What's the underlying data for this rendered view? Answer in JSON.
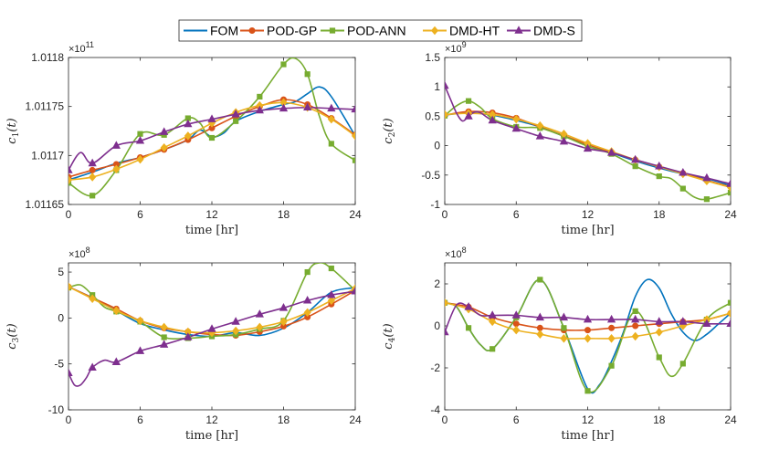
{
  "legend": [
    {
      "name": "FOM",
      "color": "#0072BD",
      "marker": "none"
    },
    {
      "name": "POD-GP",
      "color": "#D95319",
      "marker": "circle"
    },
    {
      "name": "POD-ANN",
      "color": "#77AC30",
      "marker": "square"
    },
    {
      "name": "DMD-HT",
      "color": "#EDB120",
      "marker": "diamond"
    },
    {
      "name": "DMD-S",
      "color": "#7E2F8E",
      "marker": "triangle"
    }
  ],
  "chart_data": [
    {
      "type": "line",
      "ylabel": "c_1(t)",
      "ylabel_main": "c",
      "ylabel_sub": "1",
      "ylabel_tail": "(t)",
      "xlabel": "time [hr]",
      "exponent_text": "×10",
      "exponent_power": "11",
      "xlim": [
        0,
        24
      ],
      "ylim": [
        1.01165,
        1.0118
      ],
      "xticks": [
        0,
        6,
        12,
        18,
        24
      ],
      "yticks": [
        1.01165,
        1.0117,
        1.01175,
        1.0118
      ],
      "ytick_labels": [
        "1.01165",
        "1.0117",
        "1.01175",
        "1.0118"
      ],
      "series": [
        {
          "name": "FOM",
          "x": [
            0,
            2,
            4,
            6,
            8,
            10,
            11,
            12,
            13,
            14,
            16,
            18,
            19,
            20,
            21,
            22,
            24
          ],
          "y": [
            1.011675,
            1.011683,
            1.011692,
            1.011698,
            1.011706,
            1.011716,
            1.011726,
            1.011719,
            1.011723,
            1.011735,
            1.011745,
            1.011752,
            1.011755,
            1.011763,
            1.01177,
            1.01176,
            1.01172
          ]
        },
        {
          "name": "POD-GP",
          "x": [
            0,
            2,
            4,
            6,
            8,
            10,
            12,
            14,
            16,
            18,
            20,
            22,
            24
          ],
          "y": [
            1.011678,
            1.011685,
            1.011691,
            1.011698,
            1.011706,
            1.011716,
            1.011728,
            1.01174,
            1.01175,
            1.011757,
            1.011752,
            1.011738,
            1.011721
          ]
        },
        {
          "name": "POD-ANN",
          "x": [
            0,
            2,
            4,
            6,
            8,
            10,
            11,
            12,
            14,
            16,
            18,
            19,
            20,
            21,
            22,
            24
          ],
          "y": [
            1.011672,
            1.011659,
            1.011685,
            1.011722,
            1.011721,
            1.011738,
            1.011733,
            1.011718,
            1.011735,
            1.01176,
            1.011793,
            1.011799,
            1.011783,
            1.01174,
            1.011712,
            1.011695
          ]
        },
        {
          "name": "DMD-HT",
          "x": [
            0,
            2,
            4,
            6,
            8,
            10,
            12,
            14,
            16,
            18,
            20,
            22,
            24
          ],
          "y": [
            1.011675,
            1.011678,
            1.011686,
            1.011696,
            1.011708,
            1.01172,
            1.011733,
            1.011744,
            1.011751,
            1.011754,
            1.011749,
            1.011737,
            1.01172
          ]
        },
        {
          "name": "DMD-S",
          "x": [
            0,
            1,
            2,
            4,
            6,
            8,
            10,
            12,
            14,
            16,
            18,
            20,
            22,
            24
          ],
          "y": [
            1.011685,
            1.011703,
            1.011692,
            1.01171,
            1.011715,
            1.011724,
            1.011732,
            1.011737,
            1.011742,
            1.011746,
            1.011748,
            1.011749,
            1.011748,
            1.011747
          ]
        }
      ]
    },
    {
      "type": "line",
      "ylabel": "c_2(t)",
      "ylabel_main": "c",
      "ylabel_sub": "2",
      "ylabel_tail": "(t)",
      "xlabel": "time [hr]",
      "exponent_text": "×10",
      "exponent_power": "9",
      "xlim": [
        0,
        24
      ],
      "ylim": [
        -1,
        1.5
      ],
      "xticks": [
        0,
        6,
        12,
        18,
        24
      ],
      "yticks": [
        -1,
        -0.5,
        0,
        0.5,
        1,
        1.5
      ],
      "ytick_labels": [
        "-1",
        "-0.5",
        "0",
        "0.5",
        "1",
        "1.5"
      ],
      "series": [
        {
          "name": "FOM",
          "x": [
            0,
            2,
            4,
            6,
            8,
            10,
            12,
            14,
            16,
            18,
            20,
            22,
            24
          ],
          "y": [
            0.52,
            0.56,
            0.52,
            0.43,
            0.32,
            0.16,
            0.02,
            -0.12,
            -0.26,
            -0.38,
            -0.48,
            -0.56,
            -0.68
          ]
        },
        {
          "name": "POD-GP",
          "x": [
            0,
            2,
            4,
            6,
            8,
            10,
            12,
            14,
            16,
            18,
            20,
            22,
            24
          ],
          "y": [
            0.52,
            0.58,
            0.56,
            0.47,
            0.32,
            0.17,
            0.02,
            -0.11,
            -0.24,
            -0.36,
            -0.47,
            -0.59,
            -0.7
          ]
        },
        {
          "name": "POD-ANN",
          "x": [
            0,
            1,
            2,
            3,
            4,
            6,
            8,
            10,
            12,
            14,
            16,
            18,
            19,
            20,
            21,
            22,
            24
          ],
          "y": [
            0.51,
            0.68,
            0.76,
            0.65,
            0.46,
            0.32,
            0.3,
            0.16,
            -0.01,
            -0.14,
            -0.35,
            -0.52,
            -0.56,
            -0.73,
            -0.88,
            -0.91,
            -0.8
          ]
        },
        {
          "name": "DMD-HT",
          "x": [
            0,
            2,
            4,
            6,
            8,
            10,
            12,
            14,
            16,
            18,
            20,
            22,
            24
          ],
          "y": [
            0.53,
            0.55,
            0.53,
            0.45,
            0.34,
            0.2,
            0.04,
            -0.1,
            -0.24,
            -0.36,
            -0.48,
            -0.6,
            -0.71
          ]
        },
        {
          "name": "DMD-S",
          "x": [
            0,
            0.5,
            1,
            1.5,
            2,
            2.5,
            3,
            4,
            6,
            8,
            10,
            12,
            14,
            16,
            18,
            20,
            22,
            24
          ],
          "y": [
            1.02,
            0.78,
            0.55,
            0.42,
            0.5,
            0.57,
            0.56,
            0.43,
            0.29,
            0.16,
            0.07,
            -0.05,
            -0.12,
            -0.24,
            -0.35,
            -0.46,
            -0.55,
            -0.65
          ]
        }
      ]
    },
    {
      "type": "line",
      "ylabel": "c_3(t)",
      "ylabel_main": "c",
      "ylabel_sub": "3",
      "ylabel_tail": "(t)",
      "xlabel": "time [hr]",
      "exponent_text": "×10",
      "exponent_power": "8",
      "xlim": [
        0,
        24
      ],
      "ylim": [
        -10,
        6
      ],
      "xticks": [
        0,
        6,
        12,
        18,
        24
      ],
      "yticks": [
        -10,
        -5,
        0,
        5
      ],
      "ytick_labels": [
        "-10",
        "-5",
        "0",
        "5"
      ],
      "series": [
        {
          "name": "FOM",
          "x": [
            0,
            2,
            4,
            6,
            8,
            10,
            12,
            14,
            16,
            18,
            20,
            22,
            24
          ],
          "y": [
            3.4,
            2.2,
            0.8,
            -0.6,
            -1.3,
            -1.8,
            -2.0,
            -1.6,
            -1.9,
            -1.1,
            0.6,
            2.8,
            3.3
          ]
        },
        {
          "name": "POD-GP",
          "x": [
            0,
            2,
            4,
            6,
            8,
            10,
            12,
            14,
            16,
            18,
            20,
            22,
            24
          ],
          "y": [
            3.4,
            2.2,
            1.0,
            -0.3,
            -1.1,
            -1.5,
            -1.8,
            -1.9,
            -1.5,
            -0.9,
            0.1,
            1.5,
            3.0
          ]
        },
        {
          "name": "POD-ANN",
          "x": [
            0,
            1,
            2,
            3,
            4,
            6,
            8,
            10,
            12,
            14,
            16,
            18,
            20,
            21,
            22,
            24
          ],
          "y": [
            3.3,
            3.6,
            2.5,
            1.2,
            0.7,
            -0.4,
            -2.1,
            -2.2,
            -2.0,
            -1.8,
            -1.2,
            -0.3,
            5.0,
            6.0,
            5.4,
            3.0
          ]
        },
        {
          "name": "DMD-HT",
          "x": [
            0,
            2,
            4,
            6,
            8,
            10,
            12,
            14,
            16,
            18,
            20,
            22,
            24
          ],
          "y": [
            3.4,
            2.1,
            0.8,
            -0.3,
            -1.0,
            -1.5,
            -1.6,
            -1.4,
            -1.0,
            -0.4,
            0.6,
            1.9,
            3.2
          ]
        },
        {
          "name": "DMD-S",
          "x": [
            0,
            0.5,
            1,
            1.5,
            2,
            3,
            4,
            6,
            8,
            10,
            12,
            14,
            16,
            18,
            20,
            22,
            24
          ],
          "y": [
            -6.0,
            -7.3,
            -7.3,
            -6.5,
            -5.4,
            -4.6,
            -4.8,
            -3.6,
            -2.9,
            -2.1,
            -1.2,
            -0.4,
            0.4,
            1.1,
            1.9,
            2.5,
            2.9
          ]
        }
      ]
    },
    {
      "type": "line",
      "ylabel": "c_4(t)",
      "ylabel_main": "c",
      "ylabel_sub": "4",
      "ylabel_tail": "(t)",
      "xlabel": "time [hr]",
      "exponent_text": "×10",
      "exponent_power": "8",
      "xlim": [
        0,
        24
      ],
      "ylim": [
        -4,
        3
      ],
      "xticks": [
        0,
        6,
        12,
        18,
        24
      ],
      "yticks": [
        -4,
        -2,
        0,
        2
      ],
      "ytick_labels": [
        "-4",
        "-2",
        "0",
        "2"
      ],
      "series": [
        {
          "name": "FOM",
          "x": [
            0,
            1,
            2,
            3,
            4,
            6,
            8,
            10,
            12,
            13,
            14,
            15,
            16,
            17,
            18,
            19,
            20,
            21,
            22,
            23,
            24
          ],
          "y": [
            1.1,
            0.9,
            -0.1,
            -0.9,
            -1.1,
            0.4,
            2.2,
            -0.1,
            -3.0,
            -2.8,
            -1.7,
            -0.3,
            1.4,
            2.2,
            1.8,
            0.6,
            -0.3,
            -0.7,
            -0.4,
            0.1,
            0.6
          ]
        },
        {
          "name": "POD-GP",
          "x": [
            0,
            2,
            4,
            6,
            8,
            10,
            12,
            14,
            16,
            18,
            20,
            22,
            24
          ],
          "y": [
            1.1,
            0.9,
            0.4,
            0.1,
            -0.1,
            -0.2,
            -0.2,
            -0.1,
            0.0,
            0.1,
            0.2,
            0.3,
            0.6
          ]
        },
        {
          "name": "POD-ANN",
          "x": [
            0,
            1,
            2,
            3,
            4,
            6,
            8,
            10,
            12,
            14,
            16,
            18,
            19,
            20,
            22,
            24
          ],
          "y": [
            1.1,
            0.9,
            -0.1,
            -0.9,
            -1.1,
            0.4,
            2.2,
            -0.1,
            -3.1,
            -1.9,
            0.7,
            -1.5,
            -2.4,
            -1.8,
            0.3,
            1.1
          ]
        },
        {
          "name": "DMD-HT",
          "x": [
            0,
            2,
            4,
            6,
            8,
            10,
            12,
            14,
            16,
            18,
            20,
            22,
            24
          ],
          "y": [
            1.1,
            0.8,
            0.2,
            -0.2,
            -0.4,
            -0.6,
            -0.6,
            -0.6,
            -0.5,
            -0.3,
            0.0,
            0.3,
            0.6
          ]
        },
        {
          "name": "DMD-S",
          "x": [
            0,
            1,
            2,
            3,
            4,
            6,
            8,
            10,
            12,
            14,
            16,
            18,
            20,
            22,
            24
          ],
          "y": [
            -0.3,
            1.0,
            0.9,
            0.5,
            0.5,
            0.5,
            0.4,
            0.4,
            0.3,
            0.3,
            0.3,
            0.2,
            0.2,
            0.1,
            0.1
          ]
        }
      ]
    }
  ]
}
